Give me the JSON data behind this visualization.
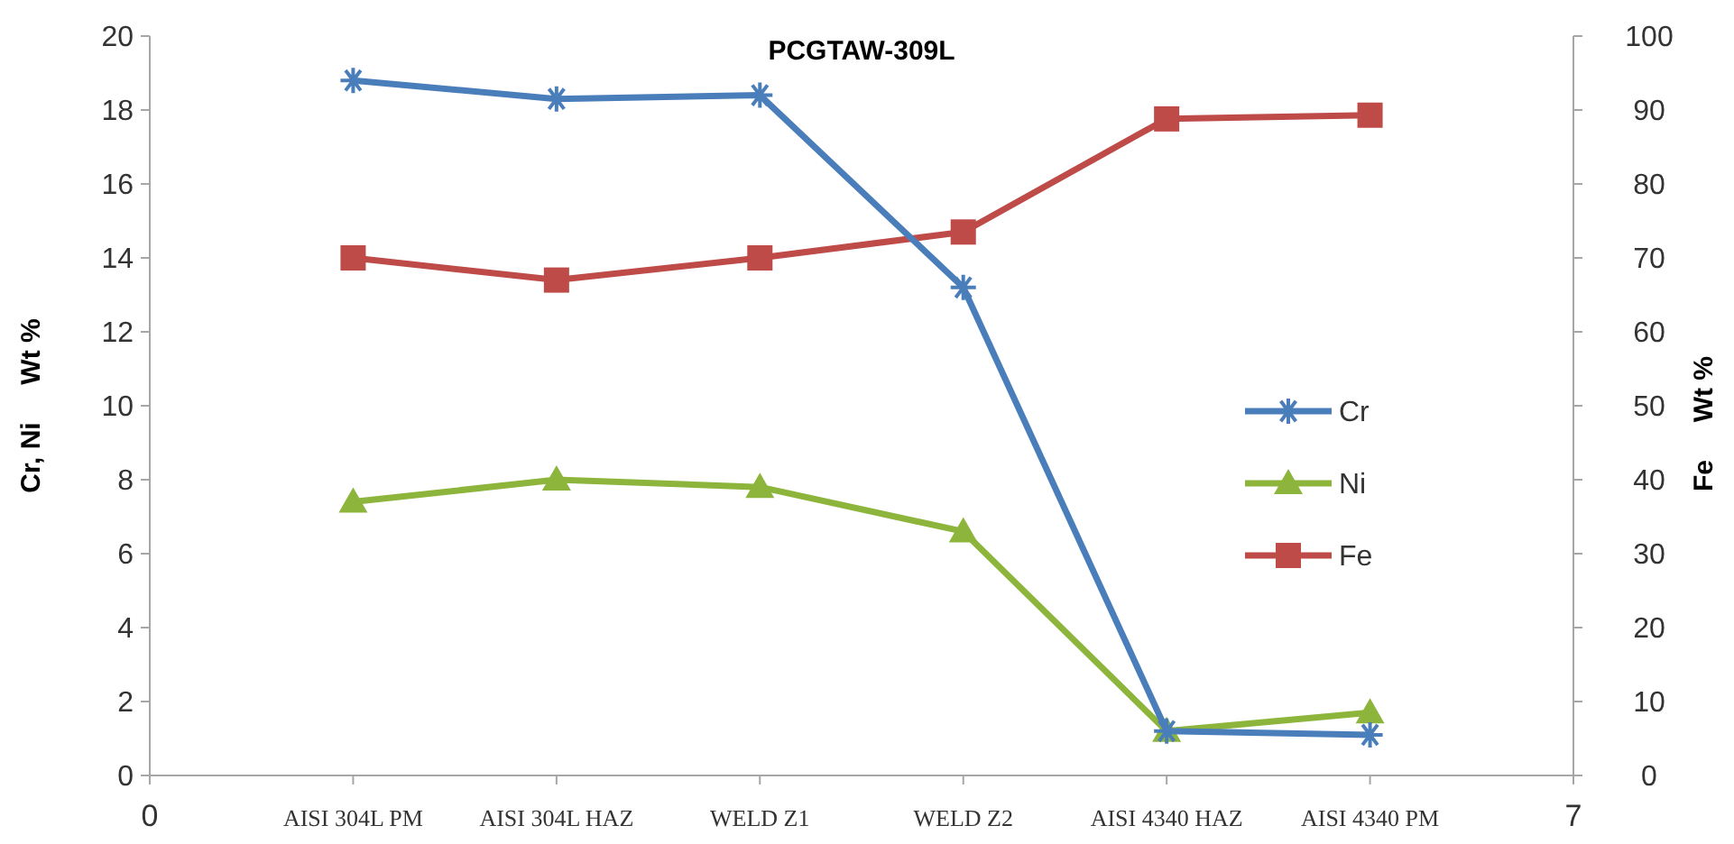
{
  "chart_data": {
    "type": "line",
    "title": "PCGTAW-309L",
    "ylabel": "Cr, Ni     Wt %",
    "y2label": "Fe     Wt %",
    "x": [
      1,
      2,
      3,
      4,
      5,
      6
    ],
    "xlim": [
      0,
      7
    ],
    "xticks": [
      0,
      {
        "value": 1,
        "label": "AISI 304L PM"
      },
      {
        "value": 2,
        "label": "AISI 304L HAZ"
      },
      {
        "value": 3,
        "label": "WELD Z1"
      },
      {
        "value": 4,
        "label": "WELD Z2"
      },
      {
        "value": 5,
        "label": "AISI 4340 HAZ"
      },
      {
        "value": 6,
        "label": "AISI 4340 PM"
      },
      7
    ],
    "ylim": [
      0,
      20
    ],
    "yticks": [
      0,
      2,
      4,
      6,
      8,
      10,
      12,
      14,
      16,
      18,
      20
    ],
    "y2lim": [
      0,
      100
    ],
    "y2ticks": [
      0,
      10,
      20,
      30,
      40,
      50,
      60,
      70,
      80,
      90,
      100
    ],
    "series": [
      {
        "name": "Cr",
        "color": "#4a7ebb",
        "marker": "cross",
        "values": [
          18.8,
          18.3,
          18.4,
          13.2,
          1.2,
          1.1
        ]
      },
      {
        "name": "Ni",
        "color": "#8db53c",
        "marker": "triangle",
        "values": [
          7.4,
          8.0,
          7.8,
          6.6,
          1.2,
          1.7
        ]
      },
      {
        "name": "Fe",
        "color": "#be4b48",
        "marker": "square",
        "axis": "y2",
        "values": [
          70,
          67,
          70,
          73.5,
          88.8,
          89.3
        ]
      }
    ],
    "grid": false,
    "legend": "right"
  }
}
